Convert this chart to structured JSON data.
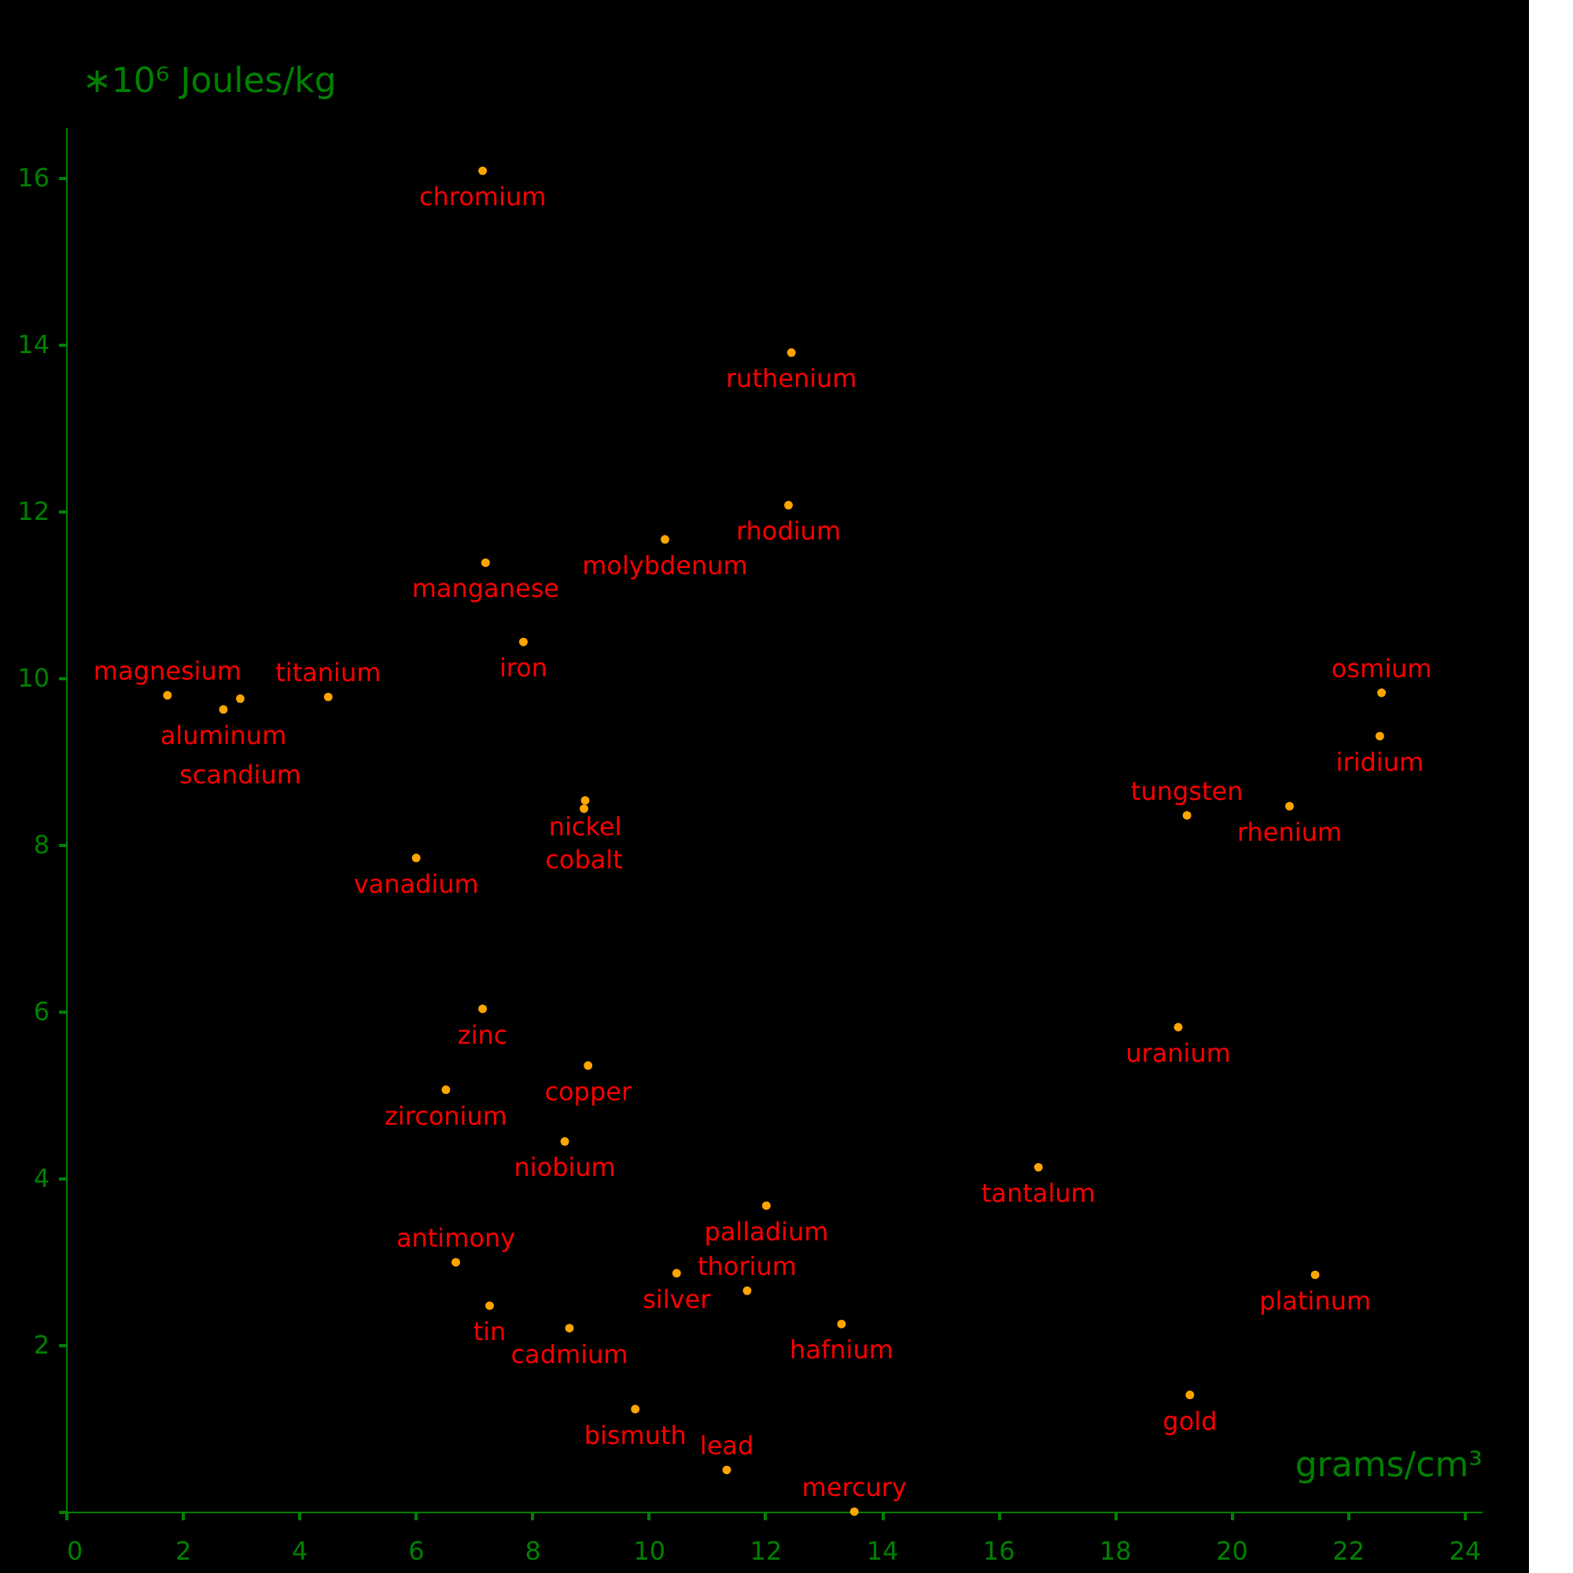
{
  "chart_data": {
    "type": "scatter",
    "xlabel": "grams/cm³",
    "ylabel": "∗10⁶ Joules/kg",
    "xlim": [
      0,
      24.3
    ],
    "ylim": [
      0,
      16.6
    ],
    "xticks": [
      0,
      2,
      4,
      6,
      8,
      10,
      12,
      14,
      16,
      18,
      20,
      22,
      24
    ],
    "yticks": [
      {
        "value": 0,
        "label": null
      },
      2,
      4,
      6,
      8,
      10,
      12,
      14,
      16
    ],
    "grid": false,
    "marker": "circle",
    "series": [
      {
        "color": "#ffa500",
        "x": [
          7.15,
          12.45,
          12.4,
          10.28,
          7.2,
          7.85,
          22.58,
          1.74,
          2.7,
          2.99,
          4.5,
          22.55,
          8.91,
          8.89,
          21.0,
          19.24,
          6.01,
          7.15,
          19.09,
          8.96,
          6.52,
          8.56,
          16.69,
          12.02,
          6.69,
          10.48,
          21.44,
          11.69,
          7.27,
          13.31,
          8.64,
          19.29,
          9.77,
          11.34,
          13.53
        ],
        "values": [
          16.08,
          13.9,
          12.07,
          11.66,
          11.38,
          10.43,
          9.82,
          9.79,
          9.62,
          9.75,
          9.77,
          9.3,
          8.53,
          8.43,
          8.46,
          8.35,
          7.84,
          6.03,
          5.81,
          5.35,
          5.06,
          4.44,
          4.13,
          3.67,
          2.99,
          2.86,
          2.84,
          2.65,
          2.47,
          2.25,
          2.2,
          1.4,
          1.23,
          0.5,
          0.0
        ]
      }
    ],
    "annotations": [
      {
        "text": "chromium",
        "x": 7.15,
        "y": 16.08
      },
      {
        "text": "ruthenium",
        "x": 12.45,
        "y": 13.9
      },
      {
        "text": "rhodium",
        "x": 12.4,
        "y": 12.07
      },
      {
        "text": "molybdenum",
        "x": 10.28,
        "y": 11.66
      },
      {
        "text": "manganese",
        "x": 7.2,
        "y": 11.38
      },
      {
        "text": "iron",
        "x": 7.85,
        "y": 10.43
      },
      {
        "text": "osmium",
        "x": 22.58,
        "y": 9.82
      },
      {
        "text": "magnesium",
        "x": 1.74,
        "y": 9.79
      },
      {
        "text": "aluminum",
        "x": 2.7,
        "y": 9.62
      },
      {
        "text": "scandium",
        "x": 2.99,
        "y": 9.75
      },
      {
        "text": "titanium",
        "x": 4.5,
        "y": 9.77
      },
      {
        "text": "iridium",
        "x": 22.55,
        "y": 9.3
      },
      {
        "text": "nickel",
        "x": 8.91,
        "y": 8.53
      },
      {
        "text": "cobalt",
        "x": 8.89,
        "y": 8.43
      },
      {
        "text": "rhenium",
        "x": 21.0,
        "y": 8.46
      },
      {
        "text": "tungsten",
        "x": 19.24,
        "y": 8.35
      },
      {
        "text": "vanadium",
        "x": 6.01,
        "y": 7.84
      },
      {
        "text": "zinc",
        "x": 7.15,
        "y": 6.03
      },
      {
        "text": "uranium",
        "x": 19.09,
        "y": 5.81
      },
      {
        "text": "copper",
        "x": 8.96,
        "y": 5.35
      },
      {
        "text": "zirconium",
        "x": 6.52,
        "y": 5.06
      },
      {
        "text": "niobium",
        "x": 8.56,
        "y": 4.44
      },
      {
        "text": "tantalum",
        "x": 16.69,
        "y": 4.13
      },
      {
        "text": "palladium",
        "x": 12.02,
        "y": 3.67
      },
      {
        "text": "antimony",
        "x": 6.69,
        "y": 2.99
      },
      {
        "text": "silver",
        "x": 10.48,
        "y": 2.86
      },
      {
        "text": "platinum",
        "x": 21.44,
        "y": 2.84
      },
      {
        "text": "thorium",
        "x": 11.69,
        "y": 2.65
      },
      {
        "text": "tin",
        "x": 7.27,
        "y": 2.47
      },
      {
        "text": "hafnium",
        "x": 13.31,
        "y": 2.25
      },
      {
        "text": "cadmium",
        "x": 8.64,
        "y": 2.2
      },
      {
        "text": "gold",
        "x": 19.29,
        "y": 1.4
      },
      {
        "text": "bismuth",
        "x": 9.77,
        "y": 1.23
      },
      {
        "text": "lead",
        "x": 11.34,
        "y": 0.5
      },
      {
        "text": "mercury",
        "x": 13.53,
        "y": 0.0
      }
    ]
  }
}
